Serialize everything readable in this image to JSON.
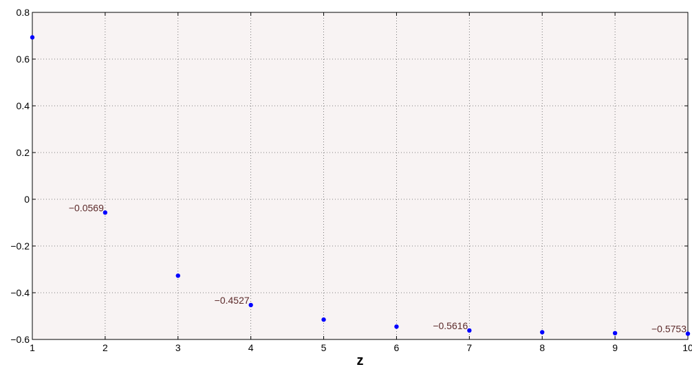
{
  "chart_data": {
    "type": "scatter",
    "title": "",
    "xlabel": "z",
    "ylabel": "",
    "xlim": [
      1,
      10
    ],
    "ylim": [
      -0.6,
      0.8
    ],
    "xticks": [
      1,
      2,
      3,
      4,
      5,
      6,
      7,
      8,
      9,
      10
    ],
    "yticks": [
      -0.6,
      -0.4,
      -0.2,
      0,
      0.2,
      0.4,
      0.6,
      0.8
    ],
    "xtick_labels": [
      "1",
      "2",
      "3",
      "4",
      "5",
      "6",
      "7",
      "8",
      "9",
      "10"
    ],
    "ytick_labels": [
      "−0.6",
      "−0.4",
      "−0.2",
      "0",
      "0.2",
      "0.4",
      "0.6",
      "0.8"
    ],
    "grid": true,
    "series": [
      {
        "x": [
          1,
          2,
          3,
          4,
          5,
          6,
          7,
          8,
          9,
          10
        ],
        "y": [
          0.693,
          -0.0569,
          -0.327,
          -0.4527,
          -0.515,
          -0.545,
          -0.5616,
          -0.569,
          -0.573,
          -0.5753
        ],
        "color": "#0000ff"
      }
    ],
    "annotations": [
      {
        "x": 2,
        "y": -0.0569,
        "text": "−0.0569"
      },
      {
        "x": 4,
        "y": -0.4527,
        "text": "−0.4527"
      },
      {
        "x": 7,
        "y": -0.5616,
        "text": "−0.5616"
      },
      {
        "x": 10,
        "y": -0.5753,
        "text": "−0.5753"
      }
    ],
    "colors": {
      "plot_background": "#f8f3f3",
      "marker": "#0000ff",
      "annotation_text": "#5c2a2a"
    }
  }
}
